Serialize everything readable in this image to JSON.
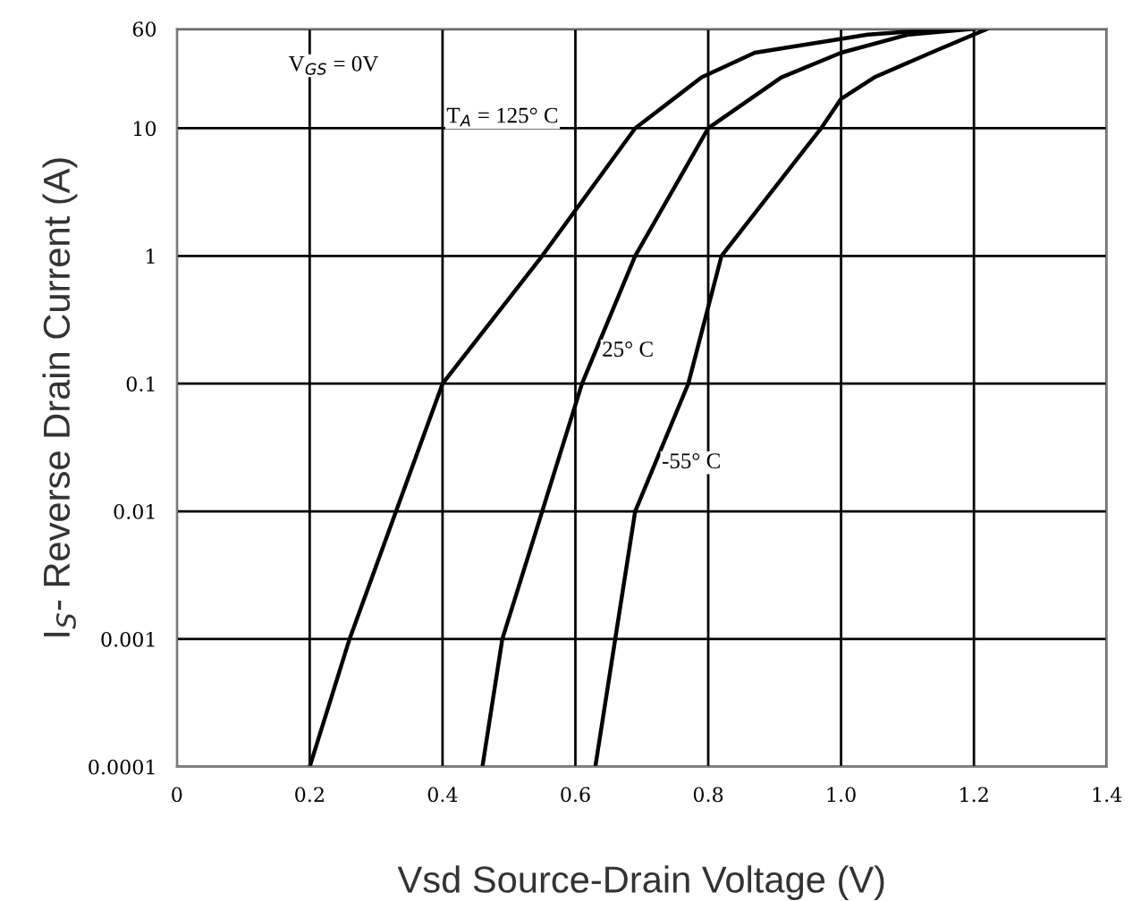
{
  "chart_data": {
    "type": "line",
    "xlabel": "Vsd Source-Drain Voltage (V)",
    "ylabel": "I$_{S}$- Reverse Drain Current (A)",
    "log": "y",
    "xlim": [
      0,
      1.4
    ],
    "ylim": [
      0.0001,
      60
    ],
    "xticks": [
      0,
      0.2,
      0.4,
      0.6,
      0.8,
      {
        "value": 1,
        "label": "1.0"
      },
      1.2,
      1.4
    ],
    "yticks": [
      0.0001,
      0.001,
      0.01,
      0.1,
      1,
      10,
      60
    ],
    "grid": true,
    "marker": "none",
    "line_style": "solid",
    "series": [
      {
        "color": "#000000",
        "x": [
          0.2,
          0.26,
          0.33,
          0.4,
          0.55,
          0.69,
          0.79,
          0.87,
          1.04,
          1.16
        ],
        "values": [
          0.0001,
          0.001,
          0.01,
          0.1,
          1,
          10,
          25,
          39,
          54,
          60
        ]
      },
      {
        "color": "#000000",
        "x": [
          0.46,
          0.49,
          0.55,
          0.61,
          0.69,
          0.8,
          0.91,
          1.0,
          1.1,
          1.2
        ],
        "values": [
          0.0001,
          0.001,
          0.01,
          0.1,
          1,
          10,
          25,
          39,
          54,
          60
        ]
      },
      {
        "color": "#000000",
        "x": [
          0.63,
          0.66,
          0.69,
          0.77,
          0.82,
          0.97,
          1.0,
          1.05,
          1.14,
          1.22
        ],
        "values": [
          0.0001,
          0.001,
          0.01,
          0.1,
          1,
          10,
          17,
          25,
          40,
          60
        ]
      }
    ],
    "annotations": [
      "V$_{GS}$ = 0V",
      "T$_{A}$ = 125° C",
      {
        "text": "25° C",
        "x": 0.64,
        "y": 0.18
      },
      {
        "text": "-55° C",
        "x": 0.73,
        "y": 0.024
      }
    ]
  }
}
